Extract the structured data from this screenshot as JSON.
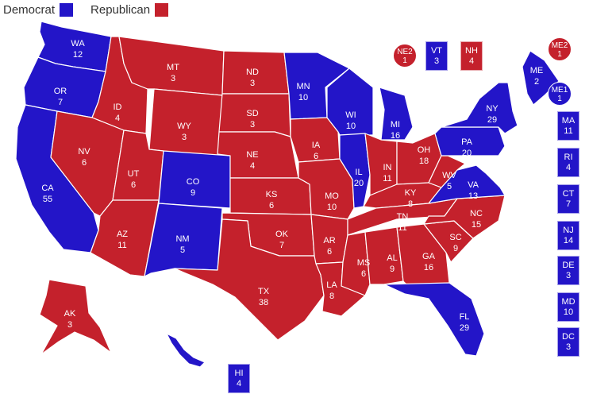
{
  "colors": {
    "D": "#2315c8",
    "R": "#c4212c"
  },
  "legend": {
    "dem_label": "Democrat",
    "rep_label": "Republican"
  },
  "states": [
    {
      "abbr": "WA",
      "ev": "12",
      "party": "D"
    },
    {
      "abbr": "OR",
      "ev": "7",
      "party": "D"
    },
    {
      "abbr": "CA",
      "ev": "55",
      "party": "D"
    },
    {
      "abbr": "ID",
      "ev": "4",
      "party": "R"
    },
    {
      "abbr": "NV",
      "ev": "6",
      "party": "R"
    },
    {
      "abbr": "MT",
      "ev": "3",
      "party": "R"
    },
    {
      "abbr": "WY",
      "ev": "3",
      "party": "R"
    },
    {
      "abbr": "UT",
      "ev": "6",
      "party": "R"
    },
    {
      "abbr": "AZ",
      "ev": "11",
      "party": "R"
    },
    {
      "abbr": "CO",
      "ev": "9",
      "party": "D"
    },
    {
      "abbr": "NM",
      "ev": "5",
      "party": "D"
    },
    {
      "abbr": "ND",
      "ev": "3",
      "party": "R"
    },
    {
      "abbr": "SD",
      "ev": "3",
      "party": "R"
    },
    {
      "abbr": "NE",
      "ev": "4",
      "party": "R"
    },
    {
      "abbr": "KS",
      "ev": "6",
      "party": "R"
    },
    {
      "abbr": "OK",
      "ev": "7",
      "party": "R"
    },
    {
      "abbr": "TX",
      "ev": "38",
      "party": "R"
    },
    {
      "abbr": "MN",
      "ev": "10",
      "party": "D"
    },
    {
      "abbr": "IA",
      "ev": "6",
      "party": "R"
    },
    {
      "abbr": "MO",
      "ev": "10",
      "party": "R"
    },
    {
      "abbr": "AR",
      "ev": "6",
      "party": "R"
    },
    {
      "abbr": "LA",
      "ev": "8",
      "party": "R"
    },
    {
      "abbr": "WI",
      "ev": "10",
      "party": "D"
    },
    {
      "abbr": "IL",
      "ev": "20",
      "party": "D"
    },
    {
      "abbr": "MI",
      "ev": "16",
      "party": "D"
    },
    {
      "abbr": "IN",
      "ev": "11",
      "party": "R"
    },
    {
      "abbr": "OH",
      "ev": "18",
      "party": "R"
    },
    {
      "abbr": "KY",
      "ev": "8",
      "party": "R"
    },
    {
      "abbr": "TN",
      "ev": "11",
      "party": "R"
    },
    {
      "abbr": "MS",
      "ev": "6",
      "party": "R"
    },
    {
      "abbr": "AL",
      "ev": "9",
      "party": "R"
    },
    {
      "abbr": "GA",
      "ev": "16",
      "party": "R"
    },
    {
      "abbr": "FL",
      "ev": "29",
      "party": "D"
    },
    {
      "abbr": "SC",
      "ev": "9",
      "party": "R"
    },
    {
      "abbr": "NC",
      "ev": "15",
      "party": "R"
    },
    {
      "abbr": "VA",
      "ev": "13",
      "party": "D"
    },
    {
      "abbr": "WV",
      "ev": "5",
      "party": "R"
    },
    {
      "abbr": "PA",
      "ev": "20",
      "party": "D"
    },
    {
      "abbr": "NY",
      "ev": "29",
      "party": "D"
    },
    {
      "abbr": "ME",
      "ev": "2",
      "party": "D"
    },
    {
      "abbr": "AK",
      "ev": "3",
      "party": "R"
    },
    {
      "abbr": "HI",
      "ev": "4",
      "party": "D"
    }
  ],
  "small_boxes": [
    {
      "abbr": "VT",
      "ev": "3",
      "party": "D"
    },
    {
      "abbr": "NH",
      "ev": "4",
      "party": "R"
    },
    {
      "abbr": "MA",
      "ev": "11",
      "party": "D"
    },
    {
      "abbr": "RI",
      "ev": "4",
      "party": "D"
    },
    {
      "abbr": "CT",
      "ev": "7",
      "party": "D"
    },
    {
      "abbr": "NJ",
      "ev": "14",
      "party": "D"
    },
    {
      "abbr": "DE",
      "ev": "3",
      "party": "D"
    },
    {
      "abbr": "MD",
      "ev": "10",
      "party": "D"
    },
    {
      "abbr": "DC",
      "ev": "3",
      "party": "D"
    }
  ],
  "districts": [
    {
      "abbr": "NE2",
      "ev": "1",
      "party": "R"
    },
    {
      "abbr": "ME2",
      "ev": "1",
      "party": "R"
    },
    {
      "abbr": "ME1",
      "ev": "1",
      "party": "D"
    }
  ]
}
